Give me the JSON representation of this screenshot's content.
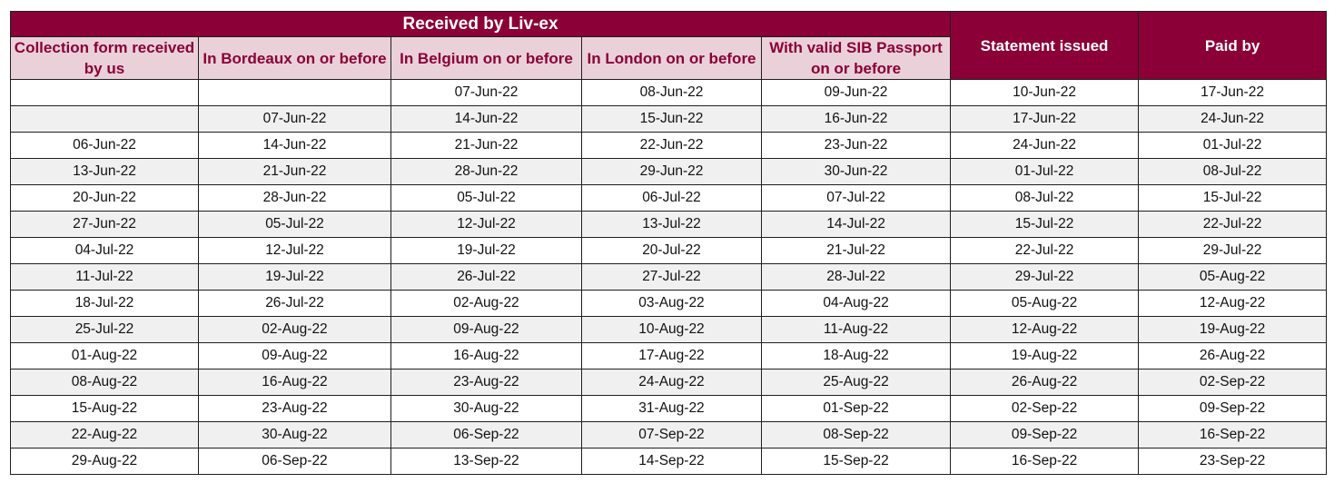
{
  "header": {
    "group_title": "Received by Liv-ex",
    "columns": [
      "Collection form received by us",
      "In Bordeaux on or before",
      "In Belgium on or before",
      "In London on or before",
      "With valid SIB Passport on or before",
      "Statement issued",
      "Paid by"
    ]
  },
  "rows": [
    [
      "",
      "",
      "07-Jun-22",
      "08-Jun-22",
      "09-Jun-22",
      "10-Jun-22",
      "17-Jun-22"
    ],
    [
      "",
      "07-Jun-22",
      "14-Jun-22",
      "15-Jun-22",
      "16-Jun-22",
      "17-Jun-22",
      "24-Jun-22"
    ],
    [
      "06-Jun-22",
      "14-Jun-22",
      "21-Jun-22",
      "22-Jun-22",
      "23-Jun-22",
      "24-Jun-22",
      "01-Jul-22"
    ],
    [
      "13-Jun-22",
      "21-Jun-22",
      "28-Jun-22",
      "29-Jun-22",
      "30-Jun-22",
      "01-Jul-22",
      "08-Jul-22"
    ],
    [
      "20-Jun-22",
      "28-Jun-22",
      "05-Jul-22",
      "06-Jul-22",
      "07-Jul-22",
      "08-Jul-22",
      "15-Jul-22"
    ],
    [
      "27-Jun-22",
      "05-Jul-22",
      "12-Jul-22",
      "13-Jul-22",
      "14-Jul-22",
      "15-Jul-22",
      "22-Jul-22"
    ],
    [
      "04-Jul-22",
      "12-Jul-22",
      "19-Jul-22",
      "20-Jul-22",
      "21-Jul-22",
      "22-Jul-22",
      "29-Jul-22"
    ],
    [
      "11-Jul-22",
      "19-Jul-22",
      "26-Jul-22",
      "27-Jul-22",
      "28-Jul-22",
      "29-Jul-22",
      "05-Aug-22"
    ],
    [
      "18-Jul-22",
      "26-Jul-22",
      "02-Aug-22",
      "03-Aug-22",
      "04-Aug-22",
      "05-Aug-22",
      "12-Aug-22"
    ],
    [
      "25-Jul-22",
      "02-Aug-22",
      "09-Aug-22",
      "10-Aug-22",
      "11-Aug-22",
      "12-Aug-22",
      "19-Aug-22"
    ],
    [
      "01-Aug-22",
      "09-Aug-22",
      "16-Aug-22",
      "17-Aug-22",
      "18-Aug-22",
      "19-Aug-22",
      "26-Aug-22"
    ],
    [
      "08-Aug-22",
      "16-Aug-22",
      "23-Aug-22",
      "24-Aug-22",
      "25-Aug-22",
      "26-Aug-22",
      "02-Sep-22"
    ],
    [
      "15-Aug-22",
      "23-Aug-22",
      "30-Aug-22",
      "31-Aug-22",
      "01-Sep-22",
      "02-Sep-22",
      "09-Sep-22"
    ],
    [
      "22-Aug-22",
      "30-Aug-22",
      "06-Sep-22",
      "07-Sep-22",
      "08-Sep-22",
      "09-Sep-22",
      "16-Sep-22"
    ],
    [
      "29-Aug-22",
      "06-Sep-22",
      "13-Sep-22",
      "14-Sep-22",
      "15-Sep-22",
      "16-Sep-22",
      "23-Sep-22"
    ]
  ],
  "colors": {
    "header_maroon": "#8b0036",
    "subheader_pink": "#ead1d9",
    "alt_row_gray": "#f0f0f0"
  }
}
